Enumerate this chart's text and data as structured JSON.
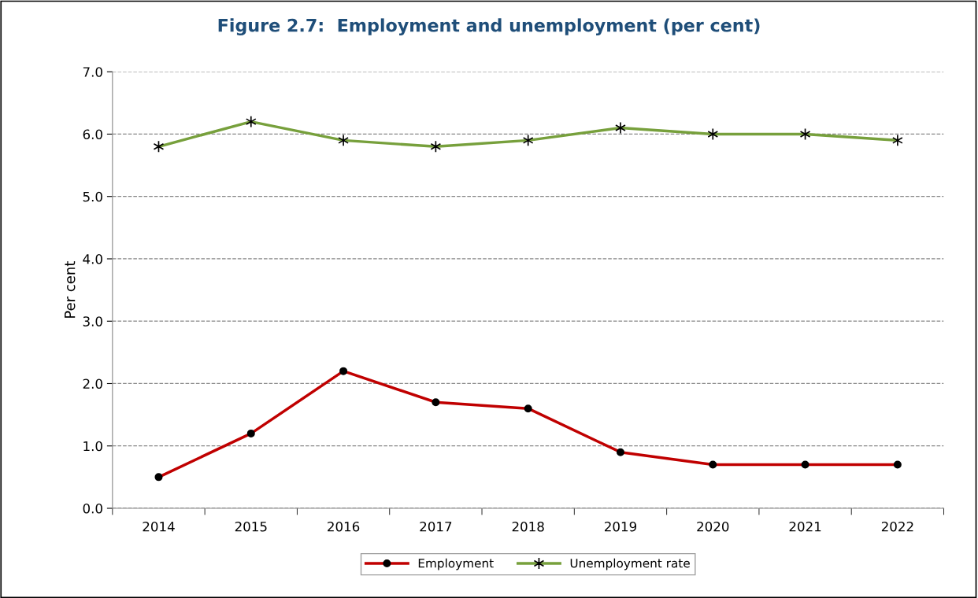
{
  "chart_data": {
    "type": "line",
    "title": "Figure 2.7:  Employment and unemployment (per cent)",
    "ylabel": "Per cent",
    "categories": [
      "2014",
      "2015",
      "2016",
      "2017",
      "2018",
      "2019",
      "2020",
      "2021",
      "2022"
    ],
    "series": [
      {
        "name": "Employment",
        "color": "#c00000",
        "marker": "circle",
        "values": [
          0.5,
          1.2,
          2.2,
          1.7,
          1.6,
          0.9,
          0.7,
          0.7,
          0.7
        ]
      },
      {
        "name": "Unemployment rate",
        "color": "#77a03c",
        "marker": "cross",
        "values": [
          5.8,
          6.2,
          5.9,
          5.8,
          5.9,
          6.1,
          6.0,
          6.0,
          5.9
        ]
      }
    ],
    "ylim": [
      0.0,
      7.0
    ],
    "yticks": [
      {
        "value": 0,
        "label": "0.0"
      },
      {
        "value": 1,
        "label": "1.0"
      },
      {
        "value": 2,
        "label": "2.0"
      },
      {
        "value": 3,
        "label": "3.0"
      },
      {
        "value": 4,
        "label": "4.0"
      },
      {
        "value": 5,
        "label": "5.0"
      },
      {
        "value": 6,
        "label": "6.0"
      },
      {
        "value": 7,
        "label": "7.0"
      }
    ],
    "grid": "y",
    "legend": "bottom",
    "line_style": "solid"
  }
}
